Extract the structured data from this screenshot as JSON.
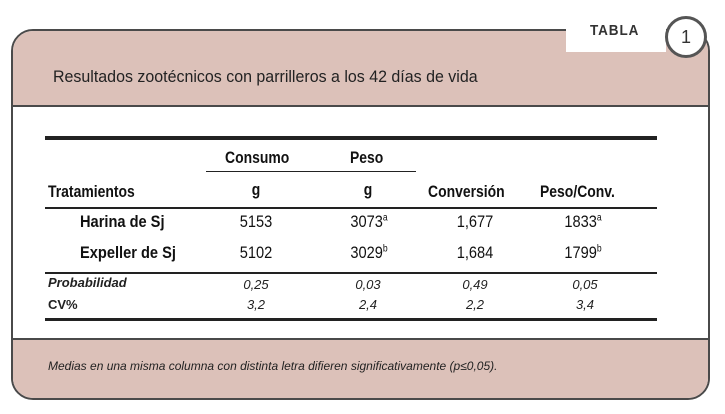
{
  "tag": {
    "label": "TABLA",
    "number": "1"
  },
  "title": "Resultados zootécnicos con parrilleros a los 42 días de vida",
  "table": {
    "headers": {
      "tratamientos": "Tratamientos",
      "consumo": "Consumo",
      "consumo_unit": "g",
      "peso": "Peso",
      "peso_unit": "g",
      "conversion": "Conversión",
      "peso_conv": "Peso/Conv."
    },
    "rows": [
      {
        "name": "Harina de Sj",
        "consumo": "5153",
        "peso": "3073",
        "peso_sup": "a",
        "conversion": "1,677",
        "peso_conv": "1833",
        "peso_conv_sup": "a"
      },
      {
        "name": "Expeller de Sj",
        "consumo": "5102",
        "peso": "3029",
        "peso_sup": "b",
        "conversion": "1,684",
        "peso_conv": "1799",
        "peso_conv_sup": "b"
      }
    ],
    "stats": [
      {
        "name": "Probabilidad",
        "consumo": "0,25",
        "peso": "0,03",
        "conversion": "0,49",
        "peso_conv": "0,05"
      },
      {
        "name": "CV%",
        "consumo": "3,2",
        "peso": "2,4",
        "conversion": "2,2",
        "peso_conv": "3,4"
      }
    ]
  },
  "footnote": "Medias en una misma columna con distinta letra difieren significativamente (p≤0,05)."
}
